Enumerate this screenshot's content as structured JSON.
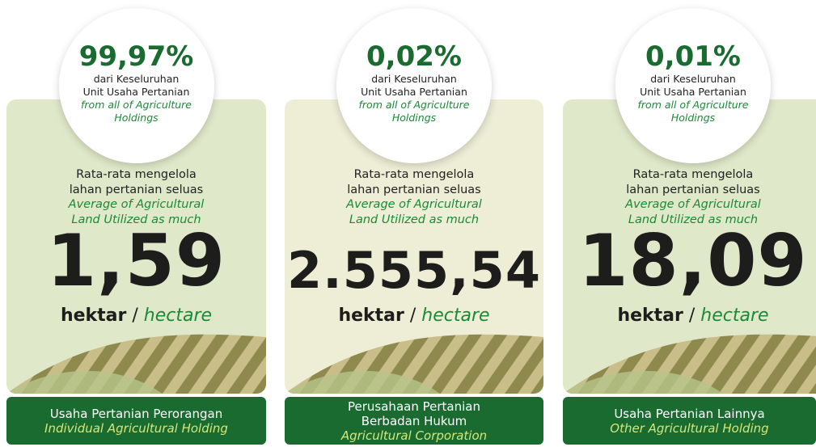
{
  "cards": [
    {
      "percent": "99,97%",
      "desc": [
        "dari Keseluruhan",
        "Unit Usaha Pertanian"
      ],
      "desc_en": [
        "from all of Agriculture",
        "Holdings"
      ],
      "avg": [
        "Rata-rata mengelola",
        "lahan pertanian seluas"
      ],
      "avg_en": [
        "Average of Agricultural",
        "Land Utilized as much"
      ],
      "value": "1,59",
      "unit": "hektar",
      "separator": "/",
      "unit_en": "hectare",
      "footer": [
        "Usaha Pertanian Perorangan"
      ],
      "footer_en": [
        "Individual Agricultural Holding"
      ]
    },
    {
      "percent": "0,02%",
      "desc": [
        "dari Keseluruhan",
        "Unit Usaha Pertanian"
      ],
      "desc_en": [
        "from all of Agriculture",
        "Holdings"
      ],
      "avg": [
        "Rata-rata mengelola",
        "lahan pertanian seluas"
      ],
      "avg_en": [
        "Average of Agricultural",
        "Land Utilized as much"
      ],
      "value": "2.555,54",
      "unit": "hektar",
      "separator": "/",
      "unit_en": "hectare",
      "footer": [
        "Perusahaan Pertanian",
        "Berbadan Hukum"
      ],
      "footer_en": [
        "Agricultural Corporation"
      ]
    },
    {
      "percent": "0,01%",
      "desc": [
        "dari Keseluruhan",
        "Unit Usaha Pertanian"
      ],
      "desc_en": [
        "from all of Agriculture",
        "Holdings"
      ],
      "avg": [
        "Rata-rata mengelola",
        "lahan pertanian seluas"
      ],
      "avg_en": [
        "Average of Agricultural",
        "Land Utilized as much"
      ],
      "value": "18,09",
      "unit": "hektar",
      "separator": "/",
      "unit_en": "hectare",
      "footer": [
        "Usaha Pertanian Lainnya"
      ],
      "footer_en": [
        "Other Agricultural Holding"
      ]
    }
  ]
}
